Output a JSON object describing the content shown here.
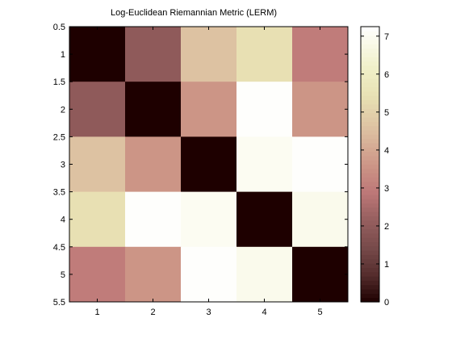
{
  "chart_data": {
    "type": "heatmap",
    "title": "Log-Euclidean Riemannian Metric (LERM)",
    "xlabel": "",
    "ylabel": "",
    "x_categories": [
      "1",
      "2",
      "3",
      "4",
      "5"
    ],
    "y_categories": [
      "1",
      "2",
      "3",
      "4",
      "5"
    ],
    "x_ticks": [
      "1",
      "2",
      "3",
      "4",
      "5"
    ],
    "y_ticks": [
      "0.5",
      "1",
      "1.5",
      "2",
      "2.5",
      "3",
      "3.5",
      "4",
      "4.5",
      "5",
      "5.5"
    ],
    "ylim": [
      0.5,
      5.5
    ],
    "xlim": [
      0.5,
      5.5
    ],
    "values": [
      [
        0.0,
        2.0,
        4.6,
        5.4,
        3.0
      ],
      [
        2.0,
        0.0,
        3.6,
        7.2,
        3.6
      ],
      [
        4.6,
        3.6,
        0.0,
        7.0,
        7.2
      ],
      [
        5.4,
        7.2,
        7.0,
        0.0,
        6.9
      ],
      [
        3.0,
        3.6,
        7.2,
        6.9,
        0.0
      ]
    ],
    "colorbar": {
      "min": 0,
      "max": 7.25,
      "ticks": [
        "0",
        "1",
        "2",
        "3",
        "4",
        "5",
        "6",
        "7"
      ],
      "colormap": "pink"
    }
  }
}
